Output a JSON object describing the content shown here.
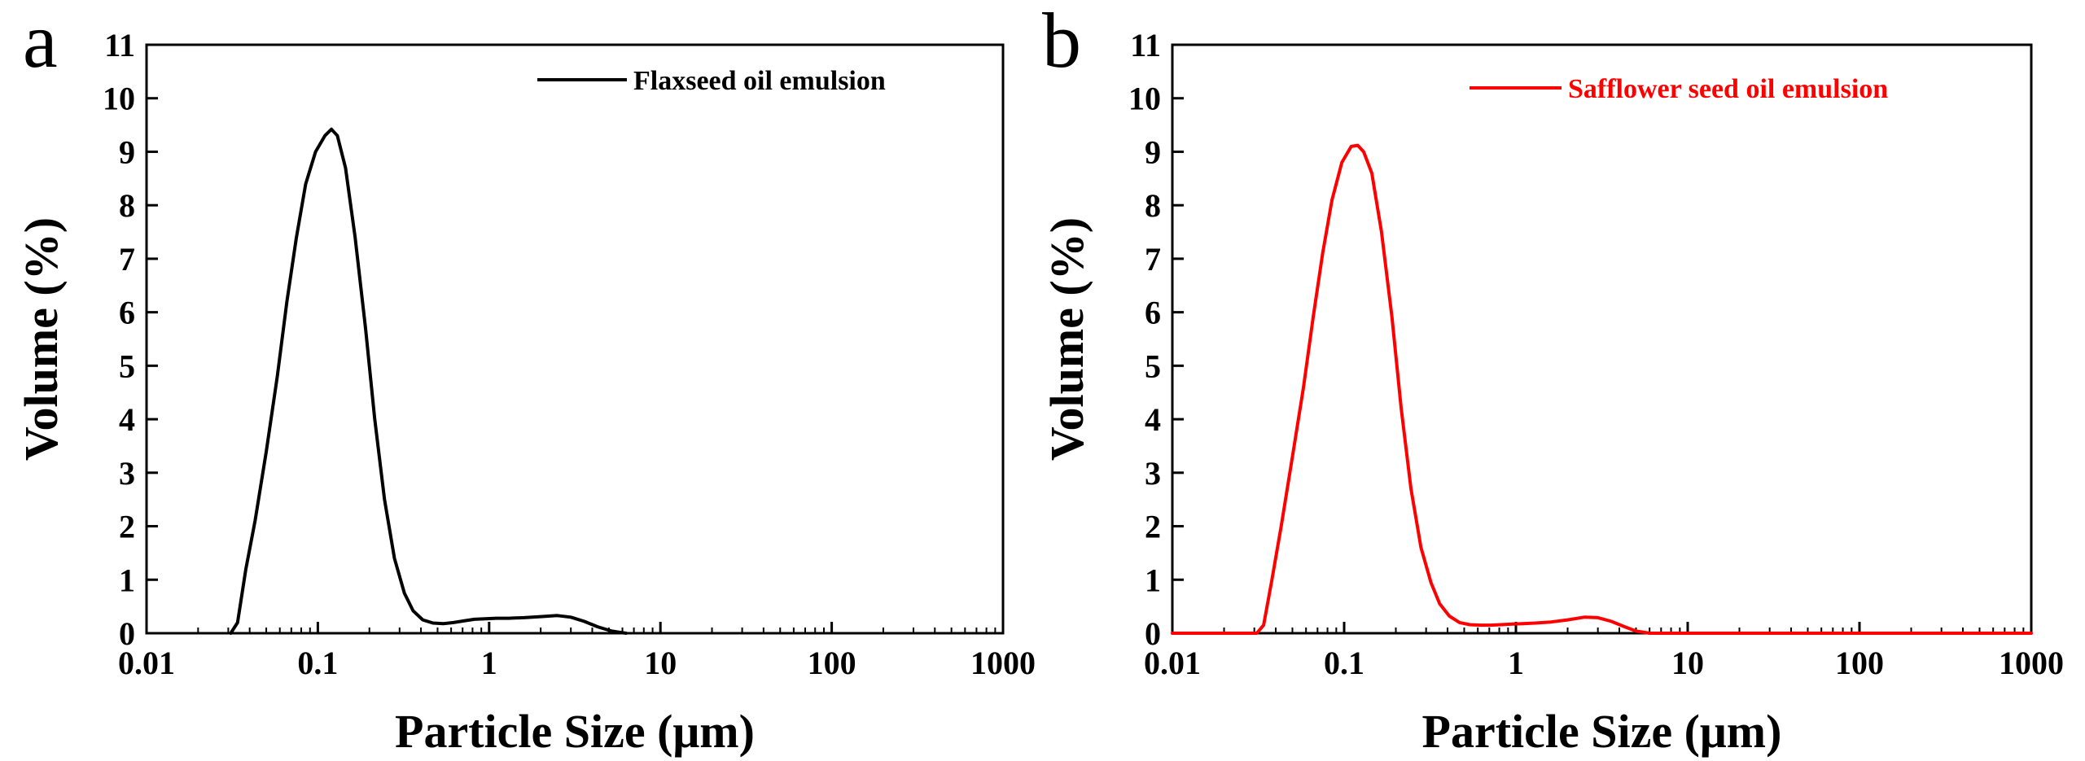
{
  "chart_data": [
    {
      "panel": "a",
      "type": "line",
      "xscale": "log",
      "xlim": [
        0.01,
        1000
      ],
      "ylim": [
        0,
        11
      ],
      "xticks": [
        0.01,
        0.1,
        1,
        10,
        100,
        1000
      ],
      "xtick_labels": [
        "0.01",
        "0.1",
        "1",
        "10",
        "100",
        "1000"
      ],
      "yticks": [
        0,
        1,
        2,
        3,
        4,
        5,
        6,
        7,
        8,
        9,
        10,
        11
      ],
      "ytick_labels": [
        "0",
        "1",
        "2",
        "3",
        "4",
        "5",
        "6",
        "7",
        "8",
        "9",
        "10",
        "11"
      ],
      "xlabel": "Particle Size (μm)",
      "ylabel": "Volume (%)",
      "legend_position": "top-right",
      "series": [
        {
          "name": "Flaxseed oil emulsion",
          "color": "#000000",
          "x": [
            0.031,
            0.034,
            0.038,
            0.043,
            0.05,
            0.058,
            0.066,
            0.075,
            0.085,
            0.097,
            0.11,
            0.12,
            0.13,
            0.145,
            0.165,
            0.19,
            0.215,
            0.245,
            0.28,
            0.32,
            0.36,
            0.41,
            0.47,
            0.54,
            0.62,
            0.71,
            0.82,
            0.95,
            1.1,
            1.3,
            1.6,
            2.0,
            2.5,
            3.0,
            3.6,
            4.3,
            5.2,
            6.3
          ],
          "y": [
            0,
            0.2,
            1.2,
            2.1,
            3.4,
            4.8,
            6.2,
            7.4,
            8.4,
            9.0,
            9.3,
            9.42,
            9.3,
            8.7,
            7.4,
            5.7,
            4.0,
            2.5,
            1.4,
            0.75,
            0.42,
            0.25,
            0.19,
            0.18,
            0.2,
            0.23,
            0.26,
            0.27,
            0.28,
            0.28,
            0.29,
            0.31,
            0.33,
            0.3,
            0.22,
            0.12,
            0.04,
            0
          ]
        }
      ]
    },
    {
      "panel": "b",
      "type": "line",
      "xscale": "log",
      "xlim": [
        0.01,
        1000
      ],
      "ylim": [
        0,
        11
      ],
      "xticks": [
        0.01,
        0.1,
        1,
        10,
        100,
        1000
      ],
      "xtick_labels": [
        "0.01",
        "0.1",
        "1",
        "10",
        "100",
        "1000"
      ],
      "yticks": [
        0,
        1,
        2,
        3,
        4,
        5,
        6,
        7,
        8,
        9,
        10,
        11
      ],
      "ytick_labels": [
        "0",
        "1",
        "2",
        "3",
        "4",
        "5",
        "6",
        "7",
        "8",
        "9",
        "10",
        "11"
      ],
      "xlabel": "Particle Size (μm)",
      "ylabel": "Volume (%)",
      "legend_position": "top-right",
      "series": [
        {
          "name": "Safflower seed oil emulsion",
          "color": "#ff0000",
          "x": [
            0.01,
            0.031,
            0.034,
            0.038,
            0.043,
            0.05,
            0.058,
            0.066,
            0.075,
            0.085,
            0.097,
            0.11,
            0.12,
            0.13,
            0.145,
            0.165,
            0.19,
            0.215,
            0.245,
            0.28,
            0.32,
            0.36,
            0.41,
            0.47,
            0.54,
            0.62,
            0.71,
            0.82,
            0.95,
            1.1,
            1.3,
            1.6,
            2.0,
            2.5,
            3.0,
            3.6,
            4.3,
            5.0,
            6.0,
            1000
          ],
          "y": [
            0,
            0,
            0.15,
            1.0,
            2.0,
            3.3,
            4.6,
            5.9,
            7.1,
            8.1,
            8.8,
            9.1,
            9.12,
            9.0,
            8.6,
            7.5,
            5.9,
            4.2,
            2.7,
            1.6,
            0.95,
            0.55,
            0.32,
            0.2,
            0.16,
            0.15,
            0.15,
            0.16,
            0.17,
            0.18,
            0.19,
            0.21,
            0.25,
            0.3,
            0.29,
            0.22,
            0.12,
            0.04,
            0,
            0
          ]
        }
      ]
    }
  ],
  "panel_labels": [
    "a",
    "b"
  ]
}
